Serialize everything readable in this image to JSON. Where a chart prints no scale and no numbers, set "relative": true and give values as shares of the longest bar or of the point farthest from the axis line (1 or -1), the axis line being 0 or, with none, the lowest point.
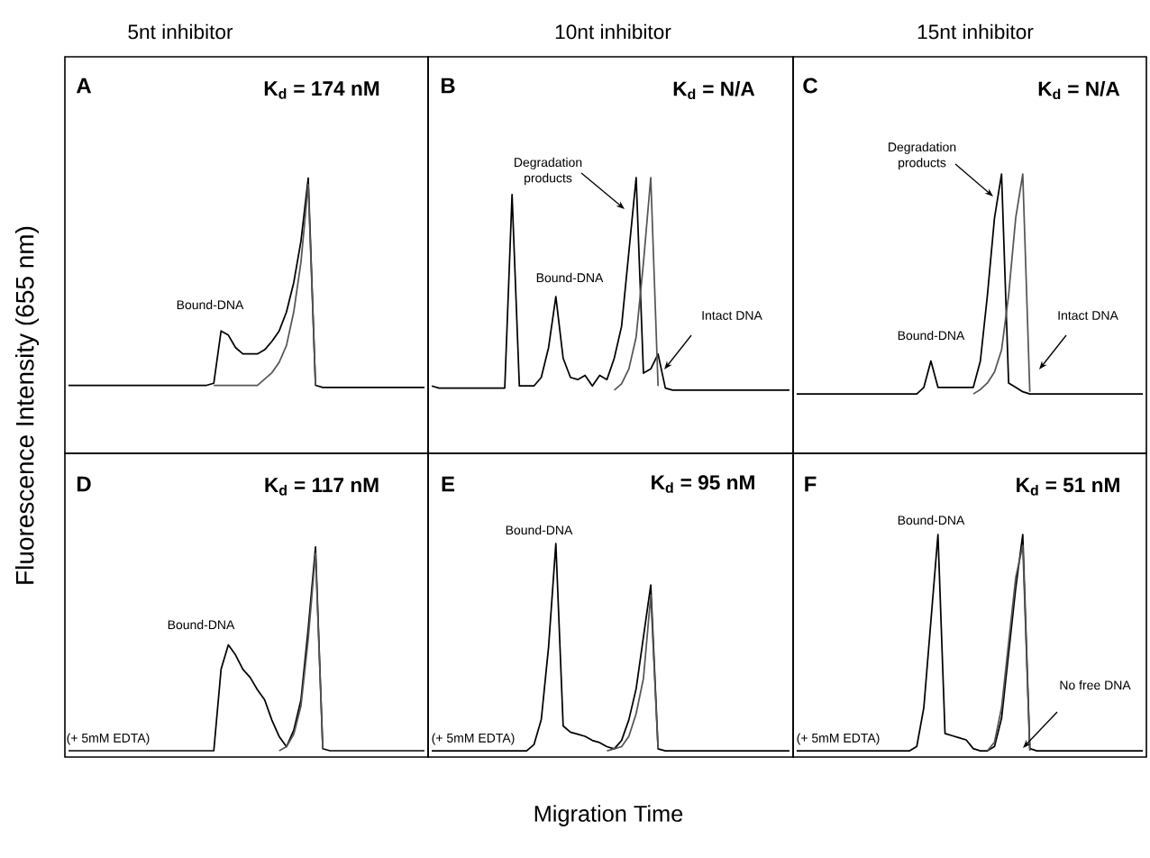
{
  "chart_data": [
    {
      "type": "line",
      "relative": true,
      "tick_labels": false,
      "title": "5nt inhibitor",
      "ylabel": "Fluorescence Intensity (655 nm)",
      "categories": [
        null,
        null,
        null,
        null,
        null,
        null,
        null,
        null,
        null,
        null,
        null,
        null,
        null,
        null,
        null,
        null,
        null,
        null,
        null,
        null,
        null,
        null,
        null,
        null,
        null,
        null,
        null,
        null,
        null,
        null,
        null,
        null,
        null,
        null,
        null,
        null,
        null,
        null,
        null,
        null,
        null,
        null,
        null,
        null,
        null,
        null,
        null,
        null,
        null,
        null
      ],
      "series": [
        {
          "color": "#000000",
          "values": [
            0.01,
            0.01,
            0.01,
            0.01,
            0.01,
            0.01,
            0.01,
            0.01,
            0.01,
            0.01,
            0.01,
            0.01,
            0.01,
            0.01,
            0.01,
            0.01,
            0.01,
            0.01,
            0.01,
            0.01,
            0.02,
            0.27,
            0.25,
            0.19,
            0.16,
            0.16,
            0.16,
            0.18,
            0.22,
            0.27,
            0.36,
            0.5,
            0.7,
            1.0,
            0.01,
            0,
            0,
            0,
            0,
            0,
            0,
            0,
            0,
            0,
            0,
            0,
            0,
            0,
            0,
            0
          ]
        },
        {
          "color": "#555555",
          "values": [
            null,
            null,
            null,
            null,
            null,
            null,
            null,
            null,
            null,
            null,
            null,
            null,
            null,
            null,
            null,
            null,
            null,
            null,
            null,
            null,
            0.01,
            0.01,
            0.01,
            0.01,
            0.01,
            0.01,
            0.01,
            0.04,
            0.07,
            0.12,
            0.2,
            0.36,
            0.6,
            0.97,
            0.01,
            null,
            null,
            null,
            null,
            null,
            null,
            null,
            null,
            null,
            null,
            null,
            null,
            null,
            null,
            null
          ]
        }
      ],
      "annotations": [
        "A",
        "K$_{d}$ = 174 nM",
        "Bound-DNA"
      ]
    },
    {
      "type": "line",
      "relative": true,
      "tick_labels": false,
      "title": "10nt inhibitor",
      "categories": [
        null,
        null,
        null,
        null,
        null,
        null,
        null,
        null,
        null,
        null,
        null,
        null,
        null,
        null,
        null,
        null,
        null,
        null,
        null,
        null,
        null,
        null,
        null,
        null,
        null,
        null,
        null,
        null,
        null,
        null,
        null,
        null,
        null,
        null,
        null,
        null,
        null,
        null,
        null,
        null,
        null,
        null,
        null,
        null,
        null,
        null,
        null,
        null,
        null,
        null
      ],
      "series": [
        {
          "color": "#000000",
          "values": [
            0.02,
            0.01,
            0.01,
            0.01,
            0.01,
            0.01,
            0.01,
            0.01,
            0.01,
            0.01,
            0.01,
            0.92,
            0.02,
            0.02,
            0.02,
            0.06,
            0.2,
            0.44,
            0.15,
            0.06,
            0.05,
            0.07,
            0.02,
            0.07,
            0.05,
            0.15,
            0.3,
            0.65,
            1.0,
            0.08,
            0.1,
            0.17,
            0.01,
            0,
            0,
            0,
            0,
            0,
            0,
            0,
            0,
            0,
            0,
            0,
            0,
            0,
            0,
            0,
            0,
            0
          ]
        },
        {
          "color": "#555555",
          "values": [
            null,
            null,
            null,
            null,
            null,
            null,
            null,
            null,
            null,
            null,
            null,
            null,
            null,
            null,
            null,
            null,
            null,
            null,
            null,
            null,
            null,
            null,
            null,
            null,
            null,
            0,
            0.03,
            0.1,
            0.25,
            0.6,
            1.0,
            0.02,
            null,
            null,
            null,
            null,
            null,
            null,
            null,
            null,
            null,
            null,
            null,
            null,
            null,
            null,
            null,
            null,
            null,
            null
          ]
        }
      ],
      "annotations": [
        "B",
        "K$_{d}$ = N/A",
        "Degradation products",
        "Bound-DNA",
        "Intact DNA"
      ]
    },
    {
      "type": "line",
      "relative": true,
      "tick_labels": false,
      "title": "15nt inhibitor",
      "categories": [
        null,
        null,
        null,
        null,
        null,
        null,
        null,
        null,
        null,
        null,
        null,
        null,
        null,
        null,
        null,
        null,
        null,
        null,
        null,
        null,
        null,
        null,
        null,
        null,
        null,
        null,
        null,
        null,
        null,
        null,
        null,
        null,
        null,
        null,
        null,
        null,
        null,
        null,
        null,
        null,
        null,
        null,
        null,
        null,
        null,
        null,
        null,
        null,
        null,
        null
      ],
      "series": [
        {
          "color": "#000000",
          "values": [
            0,
            0,
            0,
            0,
            0,
            0,
            0,
            0,
            0,
            0,
            0,
            0,
            0,
            0,
            0,
            0,
            0,
            0,
            0.03,
            0.15,
            0.03,
            0.03,
            0.03,
            0.03,
            0.03,
            0.03,
            0.15,
            0.45,
            0.8,
            1.0,
            0.05,
            0.03,
            0.01,
            0,
            0,
            0,
            0,
            0,
            0,
            0,
            0,
            0,
            0,
            0,
            0,
            0,
            0,
            0,
            0,
            0
          ]
        },
        {
          "color": "#555555",
          "values": [
            null,
            null,
            null,
            null,
            null,
            null,
            null,
            null,
            null,
            null,
            null,
            null,
            null,
            null,
            null,
            null,
            null,
            null,
            null,
            null,
            null,
            null,
            null,
            null,
            null,
            0,
            0.02,
            0.05,
            0.1,
            0.2,
            0.45,
            0.8,
            1.0,
            0.01,
            null,
            null,
            null,
            null,
            null,
            null,
            null,
            null,
            null,
            null,
            null,
            null,
            null,
            null,
            null,
            null
          ]
        }
      ],
      "annotations": [
        "C",
        "K$_{d}$ = N/A",
        "Degradation products",
        "Bound-DNA",
        "Intact DNA"
      ]
    },
    {
      "type": "line",
      "relative": true,
      "tick_labels": false,
      "categories": [
        null,
        null,
        null,
        null,
        null,
        null,
        null,
        null,
        null,
        null,
        null,
        null,
        null,
        null,
        null,
        null,
        null,
        null,
        null,
        null,
        null,
        null,
        null,
        null,
        null,
        null,
        null,
        null,
        null,
        null,
        null,
        null,
        null,
        null,
        null,
        null,
        null,
        null,
        null,
        null,
        null,
        null,
        null,
        null,
        null,
        null,
        null,
        null,
        null,
        null
      ],
      "series": [
        {
          "color": "#000000",
          "values": [
            0,
            0,
            0,
            0,
            0,
            0,
            0,
            0,
            0,
            0,
            0,
            0,
            0,
            0,
            0,
            0,
            0,
            0,
            0,
            0,
            0,
            0.4,
            0.52,
            0.47,
            0.4,
            0.36,
            0.3,
            0.25,
            0.15,
            0.07,
            0.02,
            0.1,
            0.25,
            0.6,
            1.0,
            0.01,
            0,
            0,
            0,
            0,
            0,
            0,
            0,
            0,
            0,
            0,
            0,
            0,
            0,
            0
          ]
        },
        {
          "color": "#555555",
          "values": [
            null,
            null,
            null,
            null,
            null,
            null,
            null,
            null,
            null,
            null,
            null,
            null,
            null,
            null,
            null,
            null,
            null,
            null,
            null,
            null,
            null,
            null,
            null,
            null,
            null,
            null,
            null,
            null,
            null,
            0,
            0.02,
            0.08,
            0.22,
            0.55,
            0.97,
            0.01,
            null,
            null,
            null,
            null,
            null,
            null,
            null,
            null,
            null,
            null,
            null,
            null,
            null,
            null
          ]
        }
      ],
      "annotations": [
        "D",
        "K$_{d}$ = 117 nM",
        "Bound-DNA",
        "(+ 5mM EDTA)"
      ]
    },
    {
      "type": "line",
      "relative": true,
      "tick_labels": false,
      "xlabel": "Migration Time",
      "categories": [
        null,
        null,
        null,
        null,
        null,
        null,
        null,
        null,
        null,
        null,
        null,
        null,
        null,
        null,
        null,
        null,
        null,
        null,
        null,
        null,
        null,
        null,
        null,
        null,
        null,
        null,
        null,
        null,
        null,
        null,
        null,
        null,
        null,
        null,
        null,
        null,
        null,
        null,
        null,
        null,
        null,
        null,
        null,
        null,
        null,
        null,
        null,
        null,
        null,
        null
      ],
      "series": [
        {
          "color": "#000000",
          "values": [
            0,
            0,
            0,
            0,
            0,
            0,
            0,
            0,
            0,
            0,
            0,
            0,
            0,
            0,
            0.03,
            0.15,
            0.5,
            1.0,
            0.12,
            0.09,
            0.08,
            0.07,
            0.05,
            0.04,
            0.02,
            0.01,
            0.05,
            0.15,
            0.3,
            0.55,
            0.8,
            0.01,
            0,
            0,
            0,
            0,
            0,
            0,
            0,
            0,
            0,
            0,
            0,
            0,
            0,
            0,
            0,
            0,
            0,
            0
          ]
        },
        {
          "color": "#555555",
          "values": [
            null,
            null,
            null,
            null,
            null,
            null,
            null,
            null,
            null,
            null,
            null,
            null,
            null,
            null,
            null,
            null,
            null,
            null,
            null,
            null,
            null,
            null,
            null,
            null,
            0,
            0.01,
            0.02,
            0.07,
            0.18,
            0.35,
            0.75,
            0.01,
            null,
            null,
            null,
            null,
            null,
            null,
            null,
            null,
            null,
            null,
            null,
            null,
            null,
            null,
            null,
            null,
            null,
            null
          ]
        }
      ],
      "annotations": [
        "E",
        "K$_{d}$ = 95 nM",
        "Bound-DNA",
        "(+ 5mM EDTA)"
      ]
    },
    {
      "type": "line",
      "relative": true,
      "tick_labels": false,
      "categories": [
        null,
        null,
        null,
        null,
        null,
        null,
        null,
        null,
        null,
        null,
        null,
        null,
        null,
        null,
        null,
        null,
        null,
        null,
        null,
        null,
        null,
        null,
        null,
        null,
        null,
        null,
        null,
        null,
        null,
        null,
        null,
        null,
        null,
        null,
        null,
        null,
        null,
        null,
        null,
        null,
        null,
        null,
        null,
        null,
        null,
        null,
        null,
        null,
        null,
        null
      ],
      "series": [
        {
          "color": "#000000",
          "values": [
            0,
            0,
            0,
            0,
            0,
            0,
            0,
            0,
            0,
            0,
            0,
            0,
            0,
            0,
            0,
            0,
            0,
            0.02,
            0.2,
            0.6,
            1.0,
            0.08,
            0.07,
            0.06,
            0.05,
            0.01,
            0,
            0,
            0.02,
            0.15,
            0.45,
            0.75,
            1.0,
            0.01,
            0,
            0,
            0,
            0,
            0,
            0,
            0,
            0,
            0,
            0,
            0,
            0,
            0,
            0,
            0,
            0
          ]
        },
        {
          "color": "#555555",
          "values": [
            null,
            null,
            null,
            null,
            null,
            null,
            null,
            null,
            null,
            null,
            null,
            null,
            null,
            null,
            null,
            null,
            null,
            null,
            null,
            null,
            null,
            null,
            null,
            null,
            null,
            null,
            null,
            0,
            0.04,
            0.2,
            0.5,
            0.8,
            0.95,
            0,
            null,
            null,
            null,
            null,
            null,
            null,
            null,
            null,
            null,
            null,
            null,
            null,
            null,
            null,
            null,
            null
          ]
        }
      ],
      "annotations": [
        "F",
        "K$_{d}$ = 51 nM",
        "Bound-DNA",
        "No free DNA",
        "(+ 5mM EDTA)"
      ]
    }
  ]
}
